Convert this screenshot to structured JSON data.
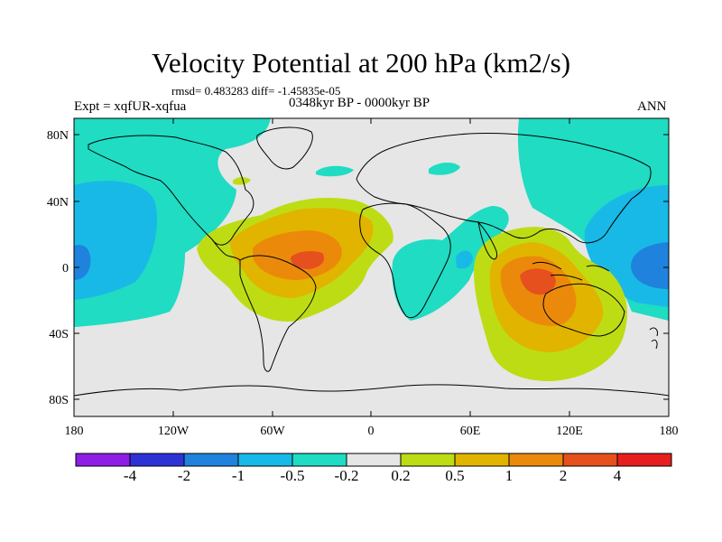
{
  "title": "Velocity Potential at 200 hPa (km2/s)",
  "stats": "rmsd= 0.483283 diff= -1.45835e-05",
  "experiment": "Expt = xqfUR-xqfua",
  "period": "0348kyr BP - 0000kyr BP",
  "season": "ANN",
  "axes": {
    "x_ticks": [
      "180",
      "120W",
      "60W",
      "0",
      "60E",
      "120E",
      "180"
    ],
    "y_ticks": [
      "80N",
      "40N",
      "0",
      "40S",
      "80S"
    ]
  },
  "colorbar": {
    "labels": [
      "-4",
      "-2",
      "-1",
      "-0.5",
      "-0.2",
      "0.2",
      "0.5",
      "1",
      "2",
      "4"
    ],
    "colors": [
      "#8c1ee6",
      "#2d32d7",
      "#1f82dc",
      "#18b9e6",
      "#1fdcc3",
      "#e6e6e6",
      "#bedc14",
      "#e1b400",
      "#eb8a0a",
      "#e6501e",
      "#e61e1e"
    ]
  },
  "palette": {
    "neg_weak": "#1fdcc3",
    "neg_mid": "#18b9e6",
    "neg_strong": "#1f82dc",
    "neutral": "#e6e6e6",
    "pos_weak": "#bedc14",
    "pos_mid": "#e1b400",
    "pos_strong": "#eb8a0a",
    "pos_max": "#e6501e"
  }
}
